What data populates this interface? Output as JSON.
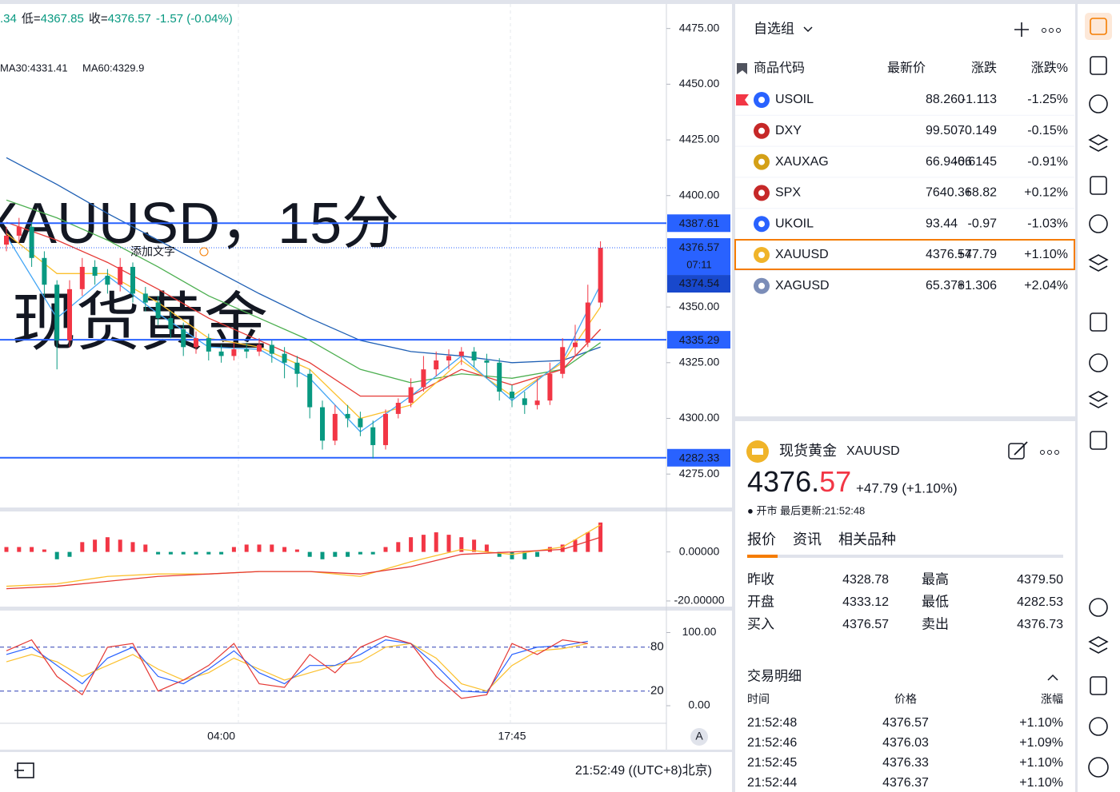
{
  "chart": {
    "header": {
      "prefix": ".34",
      "low_label": "低=",
      "low": "4367.85",
      "close_label": "收=",
      "close": "4376.57",
      "change": "-1.57 (-0.04%)"
    },
    "ma_legend": [
      {
        "text": "MA30:4331.41",
        "color": "#4caf50"
      },
      {
        "text": "MA60:4329.9",
        "color": "#1e5fb4"
      }
    ],
    "watermark": [
      "XAUUSD，15分",
      "现货黄金"
    ],
    "note": "添加文字",
    "ylim": [
      4260,
      4486
    ],
    "yticks": [
      {
        "value": 4275,
        "label": "4275.00"
      },
      {
        "value": 4300,
        "label": "4300.00"
      },
      {
        "value": 4325,
        "label": "4325.00"
      },
      {
        "value": 4350,
        "label": "4350.00"
      },
      {
        "value": 4400,
        "label": "4400.00"
      },
      {
        "value": 4425,
        "label": "4425.00"
      },
      {
        "value": 4450,
        "label": "4450.00"
      },
      {
        "value": 4475,
        "label": "4475.00"
      }
    ],
    "levels": [
      4387.61,
      4335.29,
      4282.33
    ],
    "last_price": 4376.57,
    "countdown": "07:11",
    "bid": 4374.54,
    "up_color": "#f23645",
    "down_color": "#089981",
    "candles": [
      [
        4378,
        4386,
        4375,
        4382
      ],
      [
        4382,
        4390,
        4379,
        4386
      ],
      [
        4386,
        4388,
        4368,
        4372
      ],
      [
        4372,
        4375,
        4355,
        4360
      ],
      [
        4360,
        4362,
        4322,
        4335
      ],
      [
        4335,
        4362,
        4332,
        4358
      ],
      [
        4358,
        4372,
        4355,
        4368
      ],
      [
        4368,
        4371,
        4360,
        4364
      ],
      [
        4364,
        4367,
        4356,
        4360
      ],
      [
        4360,
        4372,
        4357,
        4368
      ],
      [
        4368,
        4370,
        4352,
        4356
      ],
      [
        4356,
        4359,
        4348,
        4352
      ],
      [
        4352,
        4355,
        4342,
        4345
      ],
      [
        4345,
        4348,
        4336,
        4340
      ],
      [
        4340,
        4343,
        4328,
        4332
      ],
      [
        4332,
        4339,
        4329,
        4336
      ],
      [
        4336,
        4338,
        4326,
        4330
      ],
      [
        4330,
        4333,
        4325,
        4328
      ],
      [
        4328,
        4334,
        4326,
        4331
      ],
      [
        4331,
        4334,
        4327,
        4330
      ],
      [
        4330,
        4336,
        4328,
        4333
      ],
      [
        4333,
        4335,
        4325,
        4329
      ],
      [
        4329,
        4332,
        4318,
        4325
      ],
      [
        4325,
        4328,
        4314,
        4320
      ],
      [
        4320,
        4322,
        4300,
        4305
      ],
      [
        4305,
        4308,
        4286,
        4290
      ],
      [
        4290,
        4306,
        4288,
        4302
      ],
      [
        4302,
        4306,
        4296,
        4300
      ],
      [
        4300,
        4303,
        4292,
        4296
      ],
      [
        4296,
        4299,
        4282,
        4288
      ],
      [
        4288,
        4304,
        4286,
        4302
      ],
      [
        4302,
        4309,
        4300,
        4307
      ],
      [
        4307,
        4318,
        4305,
        4314
      ],
      [
        4314,
        4328,
        4312,
        4322
      ],
      [
        4322,
        4330,
        4319,
        4326
      ],
      [
        4326,
        4331,
        4322,
        4328
      ],
      [
        4328,
        4332,
        4324,
        4330
      ],
      [
        4330,
        4332,
        4323,
        4326
      ],
      [
        4326,
        4329,
        4318,
        4325
      ],
      [
        4325,
        4327,
        4308,
        4312
      ],
      [
        4312,
        4315,
        4305,
        4309
      ],
      [
        4309,
        4312,
        4302,
        4306
      ],
      [
        4306,
        4318,
        4304,
        4308
      ],
      [
        4308,
        4325,
        4306,
        4320
      ],
      [
        4320,
        4336,
        4318,
        4332
      ],
      [
        4332,
        4342,
        4328,
        4334
      ],
      [
        4334,
        4360,
        4332,
        4352
      ],
      [
        4352,
        4379.5,
        4350,
        4376.57
      ]
    ],
    "ma_index": [
      0,
      4,
      8,
      12,
      16,
      20,
      24,
      28,
      32,
      36,
      40,
      44,
      47
    ],
    "mas": [
      {
        "color": "#1e5fb4",
        "values": [
          4417,
          4405,
          4392,
          4380,
          4368,
          4356,
          4345,
          4335,
          4330,
          4328,
          4325,
          4326,
          4332
        ]
      },
      {
        "color": "#4caf50",
        "values": [
          4398,
          4390,
          4380,
          4368,
          4355,
          4345,
          4335,
          4322,
          4316,
          4320,
          4318,
          4322,
          4334
        ]
      },
      {
        "color": "#e53935",
        "values": [
          4388,
          4380,
          4370,
          4358,
          4345,
          4335,
          4325,
          4310,
          4310,
          4322,
          4315,
          4322,
          4340
        ]
      },
      {
        "color": "#fbc02d",
        "values": [
          4383,
          4365,
          4365,
          4352,
          4336,
          4332,
          4322,
          4300,
          4306,
          4326,
          4310,
          4325,
          4350
        ]
      },
      {
        "color": "#42a5f5",
        "values": [
          4382,
          4345,
          4364,
          4347,
          4332,
          4331,
          4318,
          4294,
          4310,
          4328,
          4308,
          4326,
          4360
        ]
      }
    ],
    "macd": {
      "ylim": [
        -22.3,
        16.5
      ],
      "yticks": [
        {
          "value": 0,
          "label": "0.00000"
        },
        {
          "value": -20,
          "label": "-20.00000"
        }
      ],
      "hist": [
        2,
        2,
        2,
        1,
        -3,
        -2,
        4,
        5,
        6,
        5,
        4,
        3,
        -1,
        -1,
        -1,
        -1,
        -1,
        -1,
        2,
        3,
        3,
        3,
        2,
        1,
        -2,
        -3,
        -2,
        -2,
        -1,
        -1,
        2,
        4,
        6,
        7,
        8,
        7,
        6,
        5,
        3,
        -2,
        -3,
        -3,
        -2,
        2,
        3,
        5,
        8,
        12
      ],
      "lines": [
        {
          "color": "#fbc02d",
          "values": [
            -14,
            -13,
            -10,
            -9,
            -9,
            -8,
            -8,
            -10,
            -4,
            1,
            -1,
            2,
            11
          ]
        },
        {
          "color": "#e53935",
          "values": [
            -15,
            -14,
            -12,
            -10,
            -9,
            -8,
            -8,
            -9,
            -6,
            -1,
            0,
            1,
            6
          ]
        }
      ]
    },
    "stoch": {
      "ylim": [
        -24,
        130
      ],
      "yticks": [
        {
          "value": 100,
          "label": "100.00"
        },
        {
          "value": 0,
          "label": "0.00"
        }
      ],
      "levels": [
        80,
        20
      ],
      "index": [
        0,
        2,
        4,
        6,
        8,
        10,
        12,
        14,
        16,
        18,
        20,
        22,
        24,
        26,
        28,
        30,
        32,
        34,
        36,
        38,
        40,
        42,
        44,
        46
      ],
      "lines": [
        {
          "color": "#fbc02d",
          "values": [
            60,
            70,
            60,
            40,
            55,
            70,
            50,
            35,
            45,
            65,
            50,
            35,
            45,
            55,
            60,
            80,
            85,
            65,
            30,
            20,
            55,
            75,
            78,
            85
          ]
        },
        {
          "color": "#2962ff",
          "values": [
            70,
            80,
            55,
            30,
            65,
            80,
            40,
            30,
            50,
            75,
            45,
            30,
            55,
            55,
            70,
            90,
            85,
            55,
            20,
            18,
            70,
            80,
            82,
            88
          ]
        },
        {
          "color": "#e53935",
          "values": [
            75,
            90,
            40,
            15,
            80,
            85,
            20,
            35,
            55,
            85,
            30,
            25,
            70,
            45,
            80,
            95,
            85,
            40,
            10,
            15,
            85,
            70,
            90,
            85
          ]
        }
      ]
    },
    "time_labels": [
      {
        "candle": 17,
        "label": "04:00"
      },
      {
        "candle": 40,
        "label": "17:45"
      }
    ],
    "scale_button": "A"
  },
  "toolbar": {
    "time": "21:52:49 ((UTC+8)北京)"
  },
  "watchlist": {
    "title": "自选组",
    "columns": [
      "商品代码",
      "最新价",
      "涨跌",
      "涨跌%"
    ],
    "rows": [
      {
        "symbol": "USOIL",
        "price": "88.260",
        "change": "-1.113",
        "pct": "-1.25%",
        "dir": "down",
        "icon_color": "#2962ff"
      },
      {
        "symbol": "DXY",
        "price": "99.507",
        "change": "-0.149",
        "pct": "-0.15%",
        "dir": "down",
        "icon_color": "#c62828"
      },
      {
        "symbol": "XAUXAG",
        "price": "66.9466",
        "change": "-0.6145",
        "pct": "-0.91%",
        "dir": "down",
        "icon_color": "#d4a017"
      },
      {
        "symbol": "SPX",
        "price": "7640.36",
        "change": "+8.82",
        "pct": "+0.12%",
        "dir": "up",
        "icon_color": "#c62828"
      },
      {
        "symbol": "UKOIL",
        "price": "93.44",
        "change": "-0.97",
        "pct": "-1.03%",
        "dir": "down",
        "icon_color": "#2962ff"
      },
      {
        "symbol": "XAUUSD",
        "price": "4376.57",
        "change": "+47.79",
        "pct": "+1.10%",
        "dir": "up",
        "icon_color": "#f0b429"
      },
      {
        "symbol": "XAGUSD",
        "price": "65.378",
        "change": "+1.306",
        "pct": "+2.04%",
        "dir": "up",
        "icon_color": "#7b8db8"
      }
    ]
  },
  "detail": {
    "name": "现货黄金",
    "symbol": "XAUUSD",
    "price_int": "4376.",
    "price_frac": "57",
    "change": "+47.79 (+1.10%)",
    "status": "● 开市 最后更新:21:52:48",
    "tabs": [
      "报价",
      "资讯",
      "相关品种"
    ],
    "quotes": [
      {
        "label": "昨收",
        "value": "4328.78",
        "dir": "flat"
      },
      {
        "label": "最高",
        "value": "4379.50",
        "dir": "up"
      },
      {
        "label": "开盘",
        "value": "4333.12",
        "dir": "up"
      },
      {
        "label": "最低",
        "value": "4282.53",
        "dir": "down"
      },
      {
        "label": "买入",
        "value": "4376.57",
        "dir": "flat"
      },
      {
        "label": "卖出",
        "value": "4376.73",
        "dir": "flat"
      }
    ],
    "trades_title": "交易明细",
    "trade_columns": [
      "时间",
      "价格",
      "涨幅"
    ],
    "trades": [
      [
        "21:52:48",
        "4376.57",
        "+1.10%"
      ],
      [
        "21:52:46",
        "4376.03",
        "+1.09%"
      ],
      [
        "21:52:45",
        "4376.33",
        "+1.10%"
      ],
      [
        "21:52:44",
        "4376.37",
        "+1.10%"
      ]
    ]
  }
}
